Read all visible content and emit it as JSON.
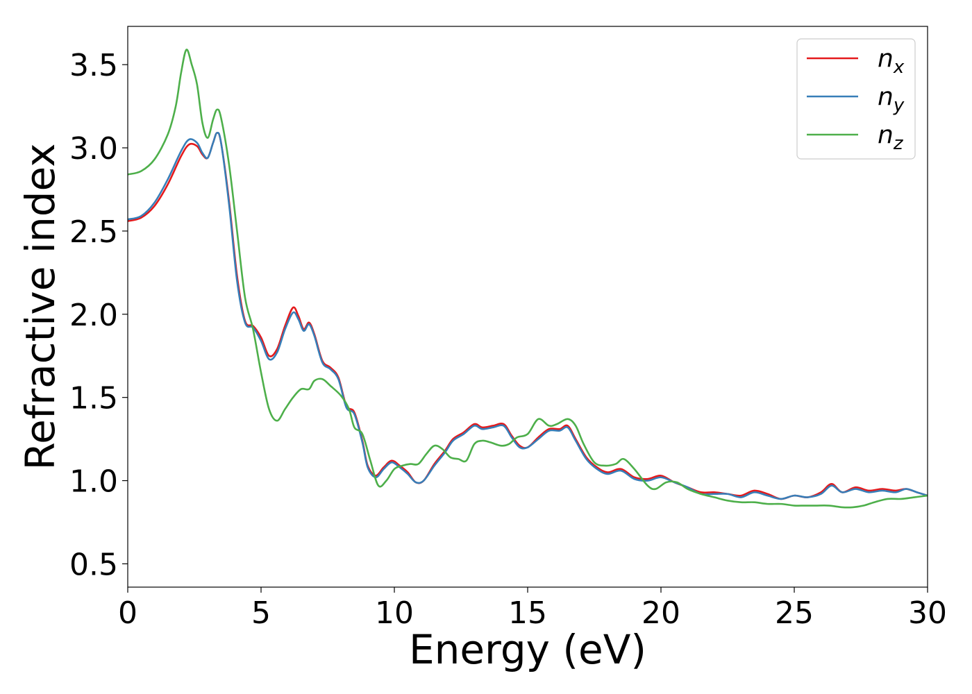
{
  "chart_data": {
    "type": "line",
    "title": "",
    "xlabel": "Energy (eV)",
    "ylabel": "Refractive index",
    "xlim": [
      0,
      30
    ],
    "ylim": [
      0.36,
      3.73
    ],
    "x_ticks": [
      0,
      5,
      10,
      15,
      20,
      25,
      30
    ],
    "x_tick_labels": [
      "0",
      "5",
      "10",
      "15",
      "20",
      "25",
      "30"
    ],
    "y_ticks": [
      0.5,
      1.0,
      1.5,
      2.0,
      2.5,
      3.0,
      3.5
    ],
    "y_tick_labels": [
      "0.5",
      "1.0",
      "1.5",
      "2.0",
      "2.5",
      "3.0",
      "3.5"
    ],
    "grid": false,
    "legend_position": "top-right",
    "series": [
      {
        "name": "n_x",
        "label_base": "n",
        "label_sub": "x",
        "color": "#e41a1c",
        "points": [
          [
            0,
            2.56
          ],
          [
            0.5,
            2.58
          ],
          [
            1,
            2.65
          ],
          [
            1.5,
            2.78
          ],
          [
            2,
            2.95
          ],
          [
            2.3,
            3.02
          ],
          [
            2.6,
            3.01
          ],
          [
            2.8,
            2.96
          ],
          [
            3.0,
            2.94
          ],
          [
            3.2,
            3.03
          ],
          [
            3.35,
            3.09
          ],
          [
            3.5,
            3.03
          ],
          [
            3.8,
            2.68
          ],
          [
            4.1,
            2.23
          ],
          [
            4.4,
            1.96
          ],
          [
            4.7,
            1.93
          ],
          [
            5.0,
            1.86
          ],
          [
            5.3,
            1.75
          ],
          [
            5.6,
            1.79
          ],
          [
            5.9,
            1.93
          ],
          [
            6.2,
            2.04
          ],
          [
            6.4,
            1.99
          ],
          [
            6.6,
            1.91
          ],
          [
            6.8,
            1.95
          ],
          [
            7.0,
            1.88
          ],
          [
            7.3,
            1.72
          ],
          [
            7.6,
            1.68
          ],
          [
            7.9,
            1.62
          ],
          [
            8.2,
            1.45
          ],
          [
            8.5,
            1.41
          ],
          [
            8.8,
            1.24
          ],
          [
            9.0,
            1.09
          ],
          [
            9.3,
            1.03
          ],
          [
            9.6,
            1.08
          ],
          [
            9.9,
            1.12
          ],
          [
            10.2,
            1.09
          ],
          [
            10.5,
            1.05
          ],
          [
            10.8,
            0.99
          ],
          [
            11.1,
            1.0
          ],
          [
            11.5,
            1.1
          ],
          [
            11.9,
            1.18
          ],
          [
            12.2,
            1.25
          ],
          [
            12.6,
            1.29
          ],
          [
            13.0,
            1.34
          ],
          [
            13.3,
            1.32
          ],
          [
            13.7,
            1.33
          ],
          [
            14.1,
            1.34
          ],
          [
            14.4,
            1.27
          ],
          [
            14.7,
            1.21
          ],
          [
            15.0,
            1.2
          ],
          [
            15.4,
            1.26
          ],
          [
            15.8,
            1.31
          ],
          [
            16.2,
            1.31
          ],
          [
            16.5,
            1.33
          ],
          [
            16.8,
            1.25
          ],
          [
            17.2,
            1.14
          ],
          [
            17.6,
            1.08
          ],
          [
            18.0,
            1.05
          ],
          [
            18.5,
            1.07
          ],
          [
            19.0,
            1.02
          ],
          [
            19.5,
            1.01
          ],
          [
            20.0,
            1.03
          ],
          [
            20.5,
            0.99
          ],
          [
            21.0,
            0.96
          ],
          [
            21.5,
            0.93
          ],
          [
            22.0,
            0.93
          ],
          [
            22.5,
            0.92
          ],
          [
            23.0,
            0.91
          ],
          [
            23.5,
            0.94
          ],
          [
            24.0,
            0.92
          ],
          [
            24.5,
            0.89
          ],
          [
            25.0,
            0.91
          ],
          [
            25.5,
            0.9
          ],
          [
            26.0,
            0.93
          ],
          [
            26.4,
            0.98
          ],
          [
            26.8,
            0.93
          ],
          [
            27.3,
            0.96
          ],
          [
            27.8,
            0.94
          ],
          [
            28.3,
            0.95
          ],
          [
            28.8,
            0.94
          ],
          [
            29.2,
            0.95
          ],
          [
            29.6,
            0.93
          ],
          [
            30,
            0.91
          ]
        ]
      },
      {
        "name": "n_y",
        "label_base": "n",
        "label_sub": "y",
        "color": "#377eb8",
        "points": [
          [
            0,
            2.57
          ],
          [
            0.5,
            2.59
          ],
          [
            1,
            2.67
          ],
          [
            1.5,
            2.81
          ],
          [
            2,
            2.98
          ],
          [
            2.3,
            3.05
          ],
          [
            2.6,
            3.03
          ],
          [
            2.8,
            2.97
          ],
          [
            3.0,
            2.94
          ],
          [
            3.2,
            3.03
          ],
          [
            3.35,
            3.09
          ],
          [
            3.5,
            3.03
          ],
          [
            3.8,
            2.66
          ],
          [
            4.1,
            2.2
          ],
          [
            4.4,
            1.95
          ],
          [
            4.7,
            1.92
          ],
          [
            5.0,
            1.84
          ],
          [
            5.3,
            1.73
          ],
          [
            5.6,
            1.77
          ],
          [
            5.9,
            1.91
          ],
          [
            6.2,
            2.01
          ],
          [
            6.4,
            1.97
          ],
          [
            6.6,
            1.9
          ],
          [
            6.8,
            1.94
          ],
          [
            7.0,
            1.87
          ],
          [
            7.3,
            1.71
          ],
          [
            7.6,
            1.67
          ],
          [
            7.9,
            1.61
          ],
          [
            8.2,
            1.44
          ],
          [
            8.5,
            1.4
          ],
          [
            8.8,
            1.23
          ],
          [
            9.0,
            1.08
          ],
          [
            9.3,
            1.02
          ],
          [
            9.6,
            1.07
          ],
          [
            9.9,
            1.11
          ],
          [
            10.2,
            1.08
          ],
          [
            10.5,
            1.04
          ],
          [
            10.8,
            0.99
          ],
          [
            11.1,
            1.0
          ],
          [
            11.5,
            1.09
          ],
          [
            11.9,
            1.17
          ],
          [
            12.2,
            1.24
          ],
          [
            12.6,
            1.28
          ],
          [
            13.0,
            1.33
          ],
          [
            13.3,
            1.31
          ],
          [
            13.7,
            1.32
          ],
          [
            14.1,
            1.33
          ],
          [
            14.4,
            1.26
          ],
          [
            14.7,
            1.2
          ],
          [
            15.0,
            1.2
          ],
          [
            15.4,
            1.25
          ],
          [
            15.8,
            1.3
          ],
          [
            16.2,
            1.3
          ],
          [
            16.5,
            1.32
          ],
          [
            16.8,
            1.24
          ],
          [
            17.2,
            1.13
          ],
          [
            17.6,
            1.07
          ],
          [
            18.0,
            1.04
          ],
          [
            18.5,
            1.06
          ],
          [
            19.0,
            1.01
          ],
          [
            19.5,
            1.0
          ],
          [
            20.0,
            1.02
          ],
          [
            20.5,
            0.99
          ],
          [
            21.0,
            0.96
          ],
          [
            21.5,
            0.92
          ],
          [
            22.0,
            0.92
          ],
          [
            22.5,
            0.92
          ],
          [
            23.0,
            0.9
          ],
          [
            23.5,
            0.93
          ],
          [
            24.0,
            0.91
          ],
          [
            24.5,
            0.89
          ],
          [
            25.0,
            0.91
          ],
          [
            25.5,
            0.9
          ],
          [
            26.0,
            0.92
          ],
          [
            26.4,
            0.97
          ],
          [
            26.8,
            0.93
          ],
          [
            27.3,
            0.95
          ],
          [
            27.8,
            0.93
          ],
          [
            28.3,
            0.94
          ],
          [
            28.8,
            0.93
          ],
          [
            29.2,
            0.95
          ],
          [
            29.6,
            0.93
          ],
          [
            30,
            0.91
          ]
        ]
      },
      {
        "name": "n_z",
        "label_base": "n",
        "label_sub": "z",
        "color": "#4daf4a",
        "points": [
          [
            0,
            2.84
          ],
          [
            0.5,
            2.86
          ],
          [
            1,
            2.93
          ],
          [
            1.5,
            3.08
          ],
          [
            1.8,
            3.25
          ],
          [
            2.0,
            3.45
          ],
          [
            2.2,
            3.59
          ],
          [
            2.4,
            3.5
          ],
          [
            2.6,
            3.38
          ],
          [
            2.8,
            3.15
          ],
          [
            3.0,
            3.06
          ],
          [
            3.2,
            3.17
          ],
          [
            3.35,
            3.23
          ],
          [
            3.5,
            3.18
          ],
          [
            3.8,
            2.9
          ],
          [
            4.1,
            2.5
          ],
          [
            4.4,
            2.1
          ],
          [
            4.7,
            1.91
          ],
          [
            5.0,
            1.65
          ],
          [
            5.3,
            1.43
          ],
          [
            5.6,
            1.36
          ],
          [
            5.9,
            1.43
          ],
          [
            6.2,
            1.5
          ],
          [
            6.5,
            1.55
          ],
          [
            6.8,
            1.55
          ],
          [
            7.0,
            1.6
          ],
          [
            7.3,
            1.61
          ],
          [
            7.6,
            1.57
          ],
          [
            8.0,
            1.51
          ],
          [
            8.3,
            1.43
          ],
          [
            8.5,
            1.32
          ],
          [
            8.8,
            1.28
          ],
          [
            9.1,
            1.12
          ],
          [
            9.4,
            0.97
          ],
          [
            9.7,
            1.0
          ],
          [
            10.0,
            1.07
          ],
          [
            10.3,
            1.09
          ],
          [
            10.6,
            1.1
          ],
          [
            10.9,
            1.1
          ],
          [
            11.2,
            1.16
          ],
          [
            11.5,
            1.21
          ],
          [
            11.8,
            1.19
          ],
          [
            12.1,
            1.14
          ],
          [
            12.4,
            1.13
          ],
          [
            12.7,
            1.12
          ],
          [
            13.0,
            1.22
          ],
          [
            13.3,
            1.24
          ],
          [
            13.6,
            1.23
          ],
          [
            14.0,
            1.21
          ],
          [
            14.3,
            1.22
          ],
          [
            14.6,
            1.26
          ],
          [
            15.0,
            1.28
          ],
          [
            15.4,
            1.37
          ],
          [
            15.8,
            1.33
          ],
          [
            16.1,
            1.34
          ],
          [
            16.5,
            1.37
          ],
          [
            16.8,
            1.33
          ],
          [
            17.1,
            1.22
          ],
          [
            17.5,
            1.11
          ],
          [
            17.9,
            1.09
          ],
          [
            18.3,
            1.1
          ],
          [
            18.6,
            1.13
          ],
          [
            19.0,
            1.07
          ],
          [
            19.5,
            0.97
          ],
          [
            19.8,
            0.95
          ],
          [
            20.2,
            0.99
          ],
          [
            20.6,
            0.99
          ],
          [
            21.0,
            0.95
          ],
          [
            21.5,
            0.92
          ],
          [
            22.0,
            0.9
          ],
          [
            22.5,
            0.88
          ],
          [
            23.0,
            0.87
          ],
          [
            23.5,
            0.87
          ],
          [
            24.0,
            0.86
          ],
          [
            24.5,
            0.86
          ],
          [
            25.0,
            0.85
          ],
          [
            25.4,
            0.85
          ],
          [
            25.8,
            0.85
          ],
          [
            26.3,
            0.85
          ],
          [
            26.8,
            0.84
          ],
          [
            27.2,
            0.84
          ],
          [
            27.6,
            0.85
          ],
          [
            28.0,
            0.87
          ],
          [
            28.5,
            0.89
          ],
          [
            29.0,
            0.89
          ],
          [
            29.5,
            0.9
          ],
          [
            30,
            0.91
          ]
        ]
      }
    ]
  }
}
